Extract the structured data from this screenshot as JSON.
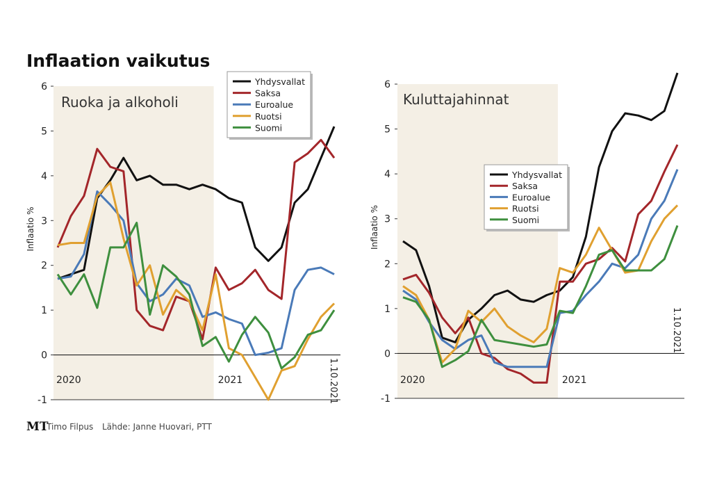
{
  "title": "Inflaation vaikutus",
  "footer": {
    "logo": "MT",
    "author": "Timo Filpus",
    "source": "Lähde: Janne Huovari, PTT"
  },
  "chart_data": [
    {
      "type": "line",
      "title": "Ruoka ja alkoholi",
      "ylabel": "Inflaatio %",
      "legend": "top-center",
      "categories": [
        "2020",
        null,
        null,
        null,
        null,
        null,
        null,
        null,
        null,
        null,
        null,
        null,
        "2021",
        null,
        null,
        null,
        null,
        null,
        null,
        null,
        null,
        "1.10.2021"
      ],
      "ylim": [
        -1,
        6
      ],
      "yticks": [
        -1,
        0,
        1,
        2,
        3,
        4,
        5,
        6
      ],
      "series": [
        {
          "name": "Yhdysvallat",
          "color": "#111111",
          "values": [
            1.7,
            1.8,
            1.9,
            3.5,
            3.9,
            4.4,
            3.9,
            4.0,
            3.8,
            3.8,
            3.7,
            3.8,
            3.7,
            3.5,
            3.4,
            2.4,
            2.1,
            2.4,
            3.4,
            3.7,
            4.4,
            5.1
          ]
        },
        {
          "name": "Saksa",
          "color": "#a3262a",
          "values": [
            2.4,
            3.1,
            3.55,
            4.6,
            4.2,
            4.1,
            1.0,
            0.65,
            0.55,
            1.3,
            1.2,
            0.35,
            1.95,
            1.45,
            1.6,
            1.9,
            1.45,
            1.25,
            4.3,
            4.5,
            4.8,
            4.4
          ]
        },
        {
          "name": "Euroalue",
          "color": "#4a7ab8",
          "values": [
            1.7,
            1.75,
            2.25,
            3.65,
            3.35,
            3.0,
            1.6,
            1.2,
            1.35,
            1.7,
            1.55,
            0.85,
            0.95,
            0.8,
            0.7,
            0.0,
            0.05,
            0.15,
            1.45,
            1.9,
            1.95,
            1.8
          ]
        },
        {
          "name": "Ruotsi",
          "color": "#e0a030",
          "values": [
            2.45,
            2.5,
            2.5,
            3.55,
            3.85,
            2.6,
            1.55,
            2.0,
            0.9,
            1.45,
            1.2,
            0.55,
            1.8,
            0.15,
            0.0,
            -0.5,
            -1.0,
            -0.35,
            -0.25,
            0.35,
            0.85,
            1.15
          ]
        },
        {
          "name": "Suomi",
          "color": "#3e8f3e",
          "values": [
            1.8,
            1.35,
            1.8,
            1.05,
            2.4,
            2.4,
            2.95,
            0.9,
            2.0,
            1.75,
            1.35,
            0.2,
            0.4,
            -0.15,
            0.45,
            0.85,
            0.5,
            -0.3,
            -0.05,
            0.45,
            0.55,
            1.0
          ]
        }
      ]
    },
    {
      "type": "line",
      "title": "Kuluttajahinnat",
      "ylabel": "Inflaatio %",
      "legend": "center",
      "categories": [
        "2020",
        null,
        null,
        null,
        null,
        null,
        null,
        null,
        null,
        null,
        null,
        null,
        "2021",
        null,
        null,
        null,
        null,
        null,
        null,
        null,
        null,
        "1.10.2021"
      ],
      "ylim": [
        -1,
        6
      ],
      "yticks": [
        -1,
        0,
        1,
        2,
        3,
        4,
        5,
        6
      ],
      "series": [
        {
          "name": "Yhdysvallat",
          "color": "#111111",
          "values": [
            2.5,
            2.3,
            1.5,
            0.35,
            0.25,
            0.75,
            1.0,
            1.3,
            1.4,
            1.2,
            1.15,
            1.3,
            1.4,
            1.7,
            2.6,
            4.15,
            4.95,
            5.35,
            5.3,
            5.2,
            5.4,
            6.25
          ]
        },
        {
          "name": "Saksa",
          "color": "#a3262a",
          "values": [
            1.65,
            1.75,
            1.35,
            0.8,
            0.45,
            0.8,
            0.0,
            -0.1,
            -0.35,
            -0.45,
            -0.65,
            -0.65,
            1.6,
            1.6,
            2.0,
            2.1,
            2.35,
            2.05,
            3.1,
            3.4,
            4.05,
            4.65
          ]
        },
        {
          "name": "Euroalue",
          "color": "#4a7ab8",
          "values": [
            1.4,
            1.2,
            0.7,
            0.3,
            0.1,
            0.3,
            0.4,
            -0.2,
            -0.3,
            -0.3,
            -0.3,
            -0.3,
            0.9,
            0.95,
            1.3,
            1.6,
            2.0,
            1.9,
            2.2,
            3.0,
            3.4,
            4.1
          ]
        },
        {
          "name": "Ruotsi",
          "color": "#e0a030",
          "values": [
            1.5,
            1.3,
            0.75,
            -0.2,
            0.1,
            0.95,
            0.7,
            1.0,
            0.6,
            0.4,
            0.25,
            0.55,
            1.9,
            1.8,
            2.2,
            2.8,
            2.3,
            1.8,
            1.85,
            2.5,
            3.0,
            3.3
          ]
        },
        {
          "name": "Suomi",
          "color": "#3e8f3e",
          "values": [
            1.25,
            1.15,
            0.75,
            -0.3,
            -0.15,
            0.05,
            0.75,
            0.3,
            0.25,
            0.2,
            0.15,
            0.2,
            0.95,
            0.9,
            1.5,
            2.2,
            2.3,
            1.85,
            1.85,
            1.85,
            2.1,
            2.85
          ]
        }
      ]
    }
  ]
}
